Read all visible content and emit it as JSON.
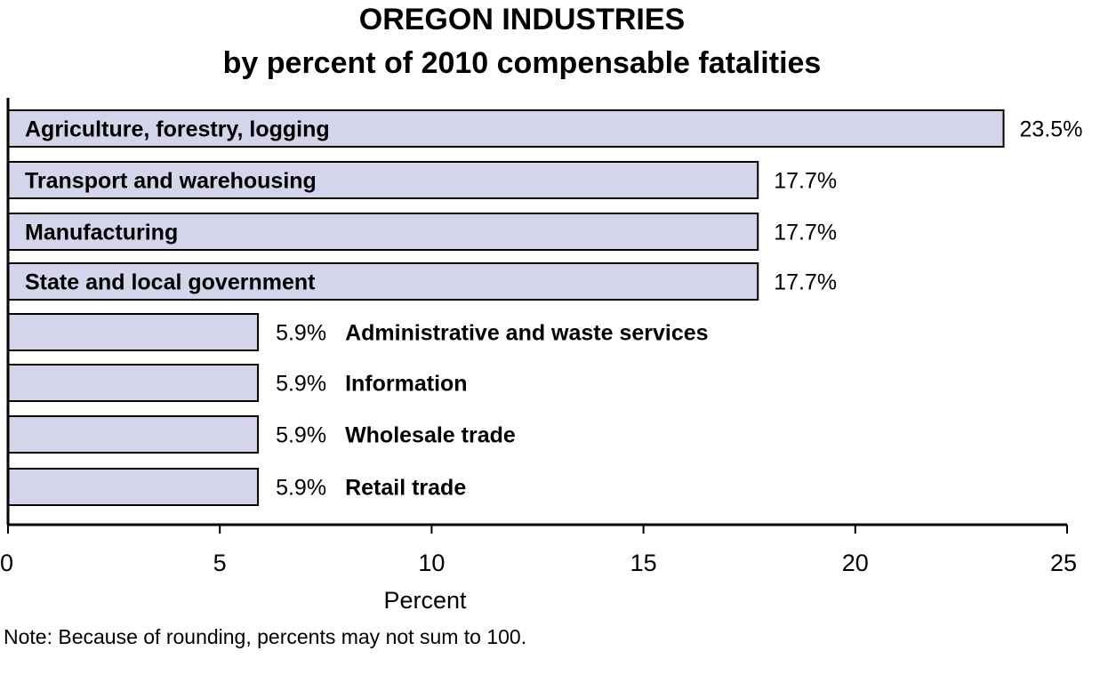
{
  "chart_data": {
    "type": "bar",
    "orientation": "horizontal",
    "title": "OREGON INDUSTRIES",
    "subtitle": "by percent of 2010 compensable fatalities",
    "xlabel": "Percent",
    "ylabel": "",
    "xlim": [
      0,
      25
    ],
    "xticks": [
      "0",
      "5",
      "10",
      "15",
      "20",
      "25"
    ],
    "grid": false,
    "bar_color": "#d4d5ea",
    "categories": [
      "Agriculture, forestry, logging",
      "Transport and warehousing",
      "Manufacturing",
      "State and local government",
      "Administrative and waste services",
      "Information",
      "Wholesale trade",
      "Retail trade"
    ],
    "values": [
      23.5,
      17.7,
      17.7,
      17.7,
      5.9,
      5.9,
      5.9,
      5.9
    ],
    "value_labels": [
      "23.5%",
      "17.7%",
      "17.7%",
      "17.7%",
      "5.9%",
      "5.9%",
      "5.9%",
      "5.9%"
    ],
    "label_inside": [
      true,
      true,
      true,
      true,
      false,
      false,
      false,
      false
    ]
  },
  "note": "Note: Because of rounding, percents may not sum to 100."
}
